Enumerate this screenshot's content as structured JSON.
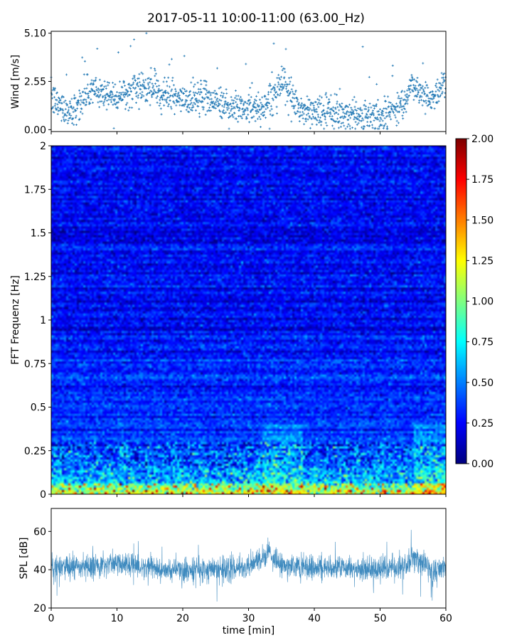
{
  "figure": {
    "title": "2017-05-11 10:00-11:00 (63.00_Hz)"
  },
  "chart_data": [
    {
      "id": "wind",
      "type": "scatter",
      "ylabel": "Wind [m/s]",
      "xlim": [
        0,
        60
      ],
      "ylim": [
        -0.1,
        5.2
      ],
      "yticks": [
        0.0,
        2.55,
        5.1
      ],
      "yticklabels": [
        "0.00",
        "2.55",
        "5.10"
      ],
      "color": "#1f77b4",
      "grid": false,
      "trend": {
        "x": [
          0,
          3,
          6,
          10,
          14,
          17,
          20,
          24,
          27,
          32,
          35,
          38,
          42,
          46,
          50,
          53,
          55,
          58,
          60
        ],
        "y": [
          1.6,
          0.9,
          2.1,
          1.8,
          2.3,
          2.0,
          1.5,
          1.7,
          1.2,
          1.1,
          2.4,
          1.0,
          0.9,
          0.8,
          0.7,
          1.3,
          2.3,
          1.6,
          2.6
        ]
      }
    },
    {
      "id": "spectrogram",
      "type": "heatmap",
      "ylabel": "FFT Frequenz [Hz]",
      "xlim": [
        0,
        60
      ],
      "ylim": [
        0,
        2
      ],
      "yticks": [
        0,
        0.25,
        0.5,
        0.75,
        1,
        1.25,
        1.5,
        1.75,
        2
      ],
      "yticklabels": [
        "0",
        "0.25",
        "0.5",
        "0.75",
        "1",
        "1.25",
        "1.5",
        "1.75",
        "2"
      ],
      "colormap": "jet",
      "colorbar": {
        "range": [
          0,
          2
        ],
        "ticks": [
          0.0,
          0.25,
          0.5,
          0.75,
          1.0,
          1.25,
          1.5,
          1.75,
          2.0
        ],
        "ticklabels": [
          "0.00",
          "0.25",
          "0.50",
          "0.75",
          "1.00",
          "1.25",
          "1.50",
          "1.75",
          "2.00"
        ]
      },
      "typical_value_by_frequency": {
        "freq": [
          0,
          0.05,
          0.1,
          0.2,
          0.3,
          0.5,
          0.75,
          1.0,
          1.5,
          2.0
        ],
        "value": [
          1.2,
          0.85,
          0.6,
          0.45,
          0.38,
          0.32,
          0.3,
          0.28,
          0.26,
          0.24
        ]
      }
    },
    {
      "id": "spl",
      "type": "line",
      "ylabel": "SPL [dB]",
      "xlabel": "time [min]",
      "xlim": [
        0,
        60
      ],
      "ylim": [
        20,
        72
      ],
      "xticks": [
        0,
        10,
        20,
        30,
        40,
        50,
        60
      ],
      "xticklabels": [
        "0",
        "10",
        "20",
        "30",
        "40",
        "50",
        "60"
      ],
      "yticks": [
        20,
        40,
        60
      ],
      "yticklabels": [
        "20",
        "40",
        "60"
      ],
      "color": "#1f77b4",
      "grid": false,
      "trend": {
        "x": [
          0,
          5,
          10,
          15,
          20,
          25,
          30,
          33,
          35,
          40,
          45,
          50,
          54,
          55,
          58,
          60
        ],
        "y": [
          41,
          42,
          43,
          41,
          40,
          40,
          41,
          48,
          43,
          41,
          41,
          40,
          41,
          48,
          38,
          42
        ]
      }
    }
  ]
}
